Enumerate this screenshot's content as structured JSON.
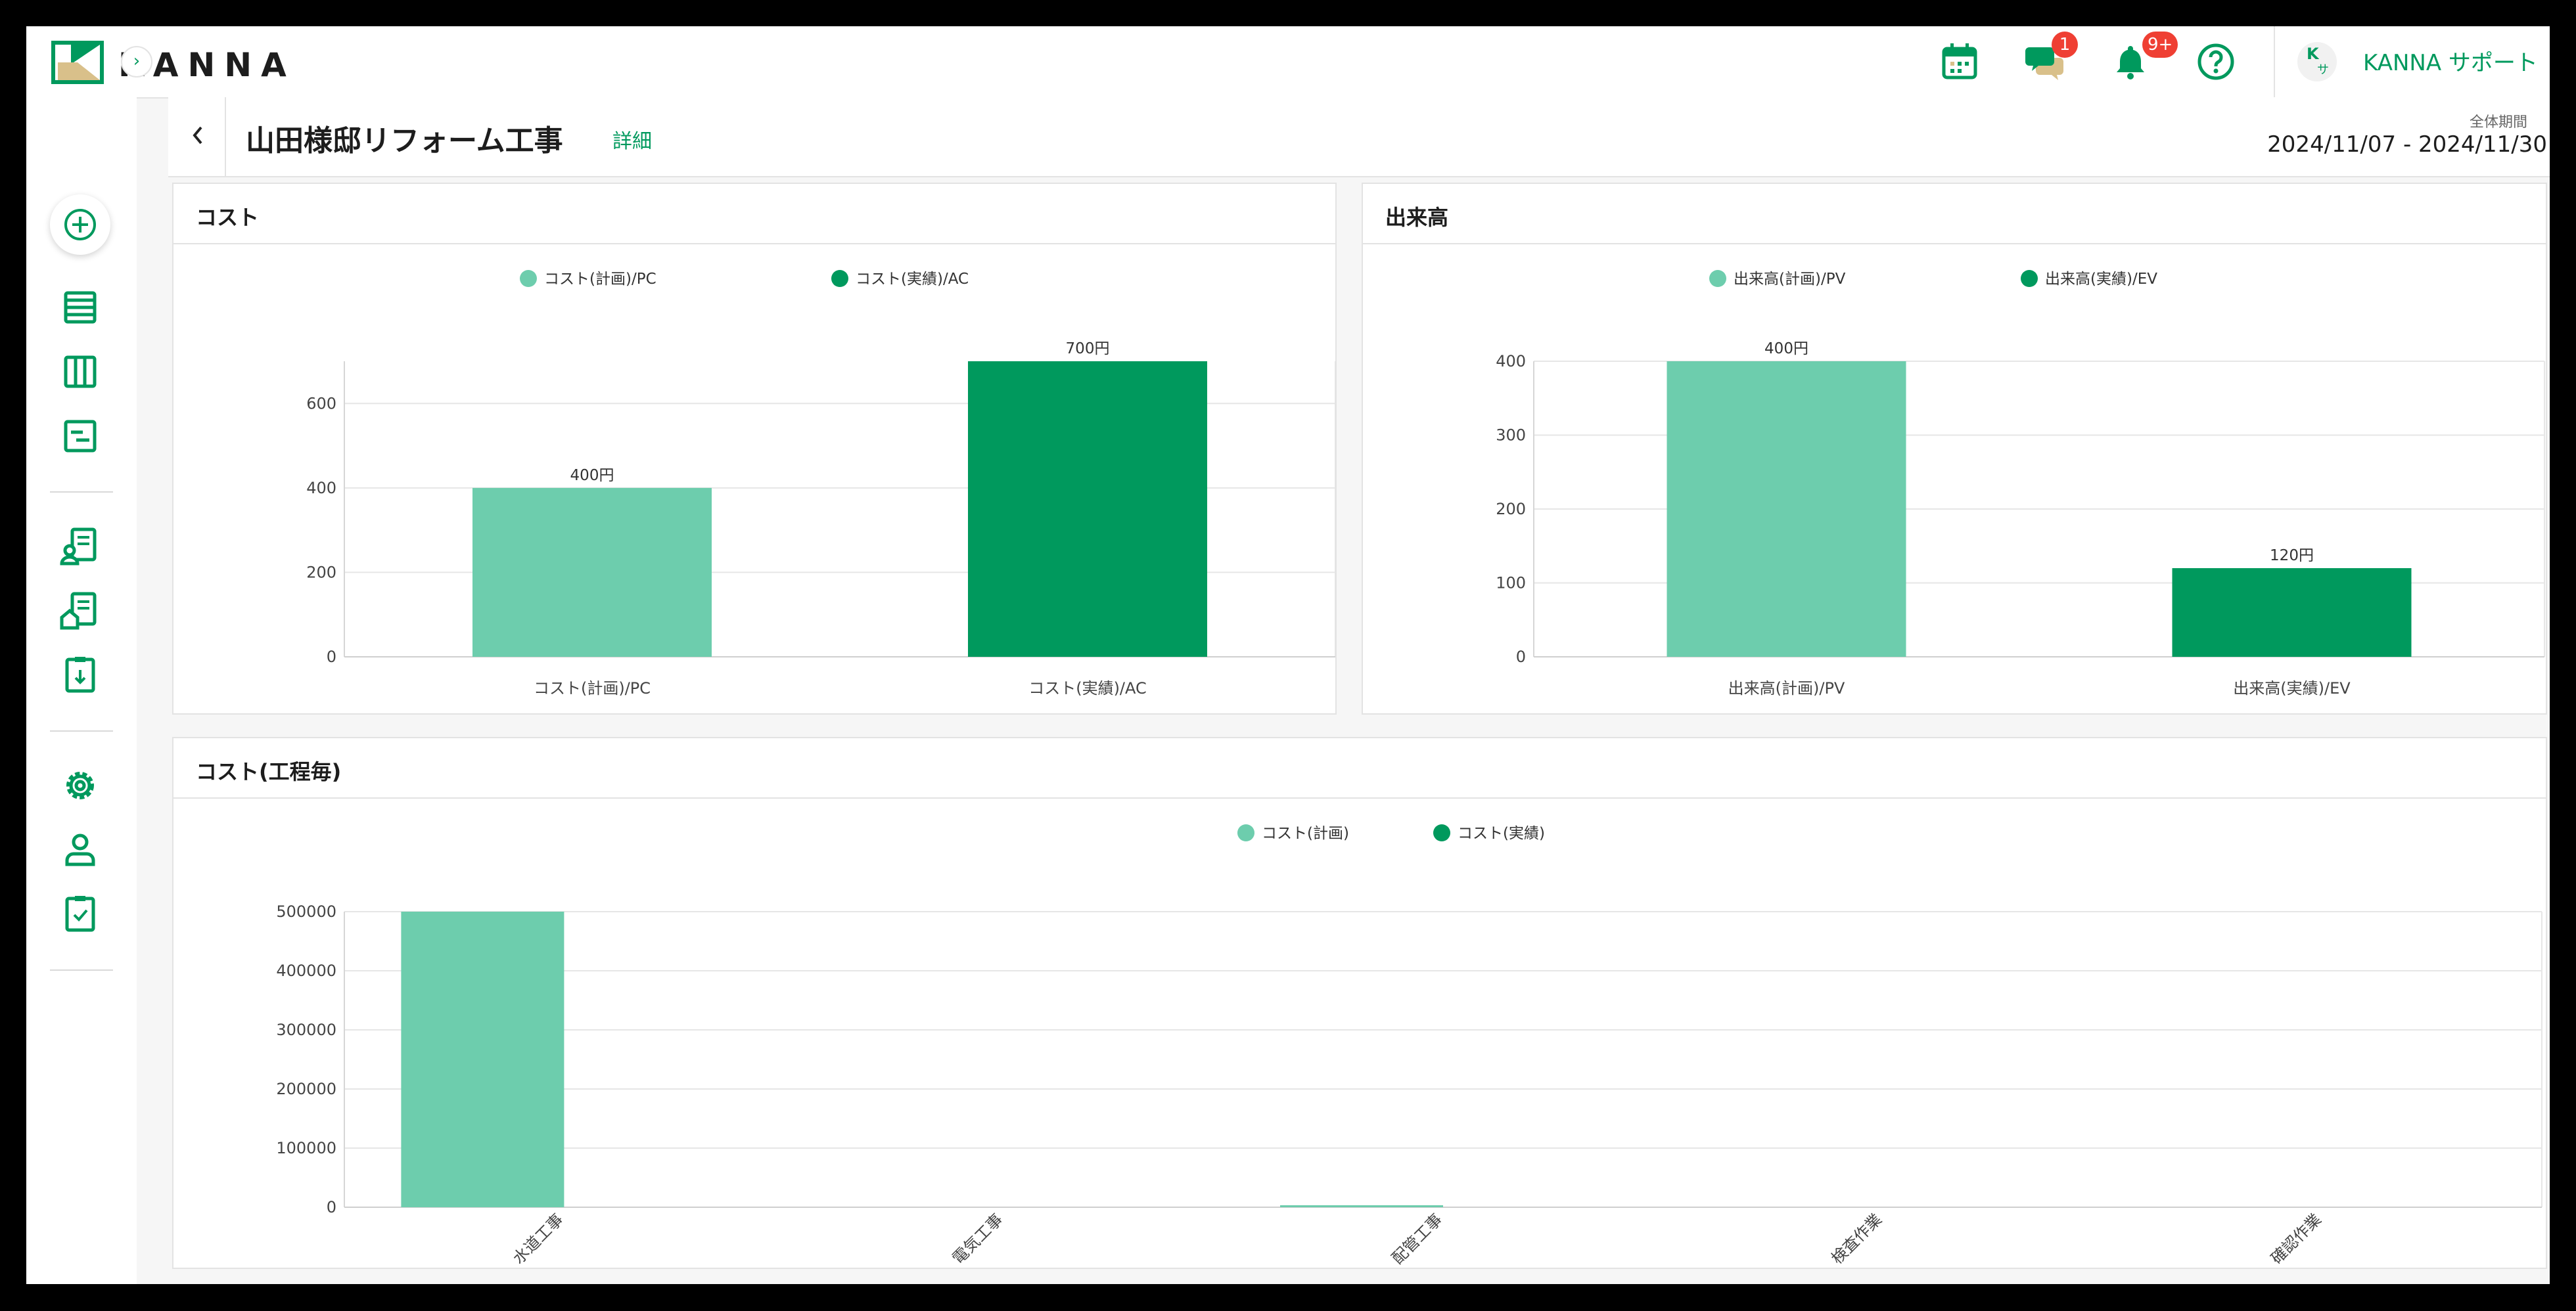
{
  "app": {
    "logo_text": "KANNA",
    "user_initial": "K",
    "user_sub": "サ",
    "user_name": "KANNA サポート",
    "message_badge": "1",
    "notification_badge": "9+"
  },
  "header": {
    "title": "山田様邸リフォーム工事",
    "detail_link": "詳細",
    "period_label": "全体期間",
    "period_value": "2024/11/07 - 2024/11/30"
  },
  "colors": {
    "plan": "#6dcdad",
    "actual": "#00995d"
  },
  "cards": {
    "cost": {
      "title": "コスト"
    },
    "earned": {
      "title": "出来高"
    },
    "process_cost": {
      "title": "コスト(工程毎)"
    }
  },
  "chart_data": [
    {
      "type": "bar",
      "categories": [
        "コスト(計画)/PC",
        "コスト(実績)/AC"
      ],
      "values": [
        400,
        700
      ],
      "data_labels": [
        "400円",
        "700円"
      ],
      "legend": [
        "コスト(計画)/PC",
        "コスト(実績)/AC"
      ],
      "ylim": [
        0,
        700
      ],
      "yticks": [
        0,
        200,
        400,
        600
      ],
      "legend_position": "top-center",
      "grid": true
    },
    {
      "type": "bar",
      "categories": [
        "出来高(計画)/PV",
        "出来高(実績)/EV"
      ],
      "values": [
        400,
        120
      ],
      "data_labels": [
        "400円",
        "120円"
      ],
      "legend": [
        "出来高(計画)/PV",
        "出来高(実績)/EV"
      ],
      "ylim": [
        0,
        400
      ],
      "yticks": [
        0,
        100,
        200,
        300,
        400
      ],
      "legend_position": "top-center",
      "grid": true
    },
    {
      "type": "bar",
      "categories": [
        "水道工事",
        "電気工事",
        "配管工事",
        "検査作業",
        "確認作業"
      ],
      "series": [
        {
          "name": "コスト(計画)",
          "values": [
            500000,
            0,
            500,
            0,
            0
          ]
        },
        {
          "name": "コスト(実績)",
          "values": [
            0,
            0,
            0,
            0,
            0
          ]
        }
      ],
      "ylim": [
        0,
        500000
      ],
      "yticks": [
        0,
        100000,
        200000,
        300000,
        400000,
        500000
      ],
      "legend_position": "top-center",
      "grid": true
    }
  ]
}
